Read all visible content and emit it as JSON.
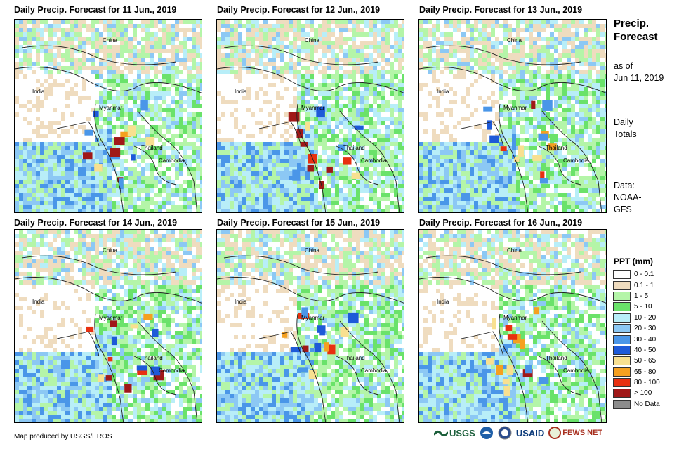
{
  "panels": [
    {
      "title": "Daily Precip. Forecast for 11 Jun., 2019"
    },
    {
      "title": "Daily Precip. Forecast for 12 Jun., 2019"
    },
    {
      "title": "Daily Precip. Forecast for 13 Jun., 2019"
    },
    {
      "title": "Daily Precip. Forecast for 14 Jun., 2019"
    },
    {
      "title": "Daily Precip. Forecast for 15 Jun., 2019"
    },
    {
      "title": "Daily Precip. Forecast for 16 Jun., 2019"
    }
  ],
  "map_labels": {
    "china": "China",
    "india": "India",
    "myanmar": "Myanmar",
    "thailand": "Thailand",
    "cambodia": "Cambodia"
  },
  "sidebar": {
    "title": "Precip. Forecast",
    "as_of_label": "as of",
    "as_of_date": "Jun 11, 2019",
    "totals_label": "Daily Totals",
    "data_label": "Data:",
    "data_source": "NOAA-GFS"
  },
  "legend": {
    "title": "PPT (mm)",
    "items": [
      {
        "label": "0 - 0.1",
        "color": "#ffffff"
      },
      {
        "label": "0.1 - 1",
        "color": "#efdcbf"
      },
      {
        "label": "1 - 5",
        "color": "#b4f5a8"
      },
      {
        "label": "5 - 10",
        "color": "#6ae26a"
      },
      {
        "label": "10 - 20",
        "color": "#b8eef8"
      },
      {
        "label": "20 - 30",
        "color": "#8cc8f4"
      },
      {
        "label": "30 - 40",
        "color": "#4a96e8"
      },
      {
        "label": "40 - 50",
        "color": "#1e5ad8"
      },
      {
        "label": "50 - 65",
        "color": "#f8e090"
      },
      {
        "label": "65 - 80",
        "color": "#f5a020"
      },
      {
        "label": "80 - 100",
        "color": "#e83010"
      },
      {
        "label": "> 100",
        "color": "#a01818"
      },
      {
        "label": "No Data",
        "color": "#8c8c8c"
      }
    ]
  },
  "footer": {
    "credit": "Map produced by USGS/EROS",
    "logo_usgs": "USGS",
    "logo_usaid": "USAID",
    "logo_fewsnet": "FEWS NET"
  }
}
